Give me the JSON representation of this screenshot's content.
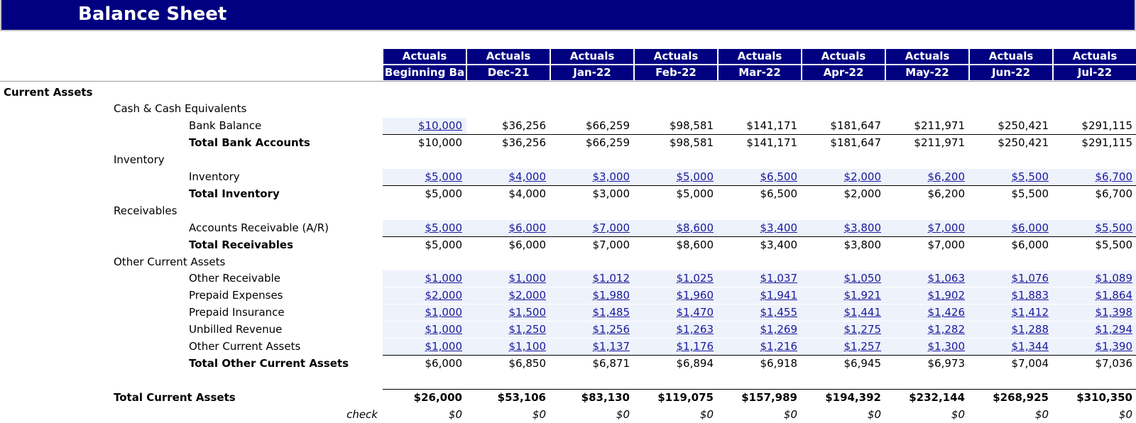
{
  "header": {
    "title": "Balance Sheet"
  },
  "table": {
    "columns": [
      {
        "scenario": "Actuals",
        "period": "Beginning Ba"
      },
      {
        "scenario": "Actuals",
        "period": "Dec-21"
      },
      {
        "scenario": "Actuals",
        "period": "Jan-22"
      },
      {
        "scenario": "Actuals",
        "period": "Feb-22"
      },
      {
        "scenario": "Actuals",
        "period": "Mar-22"
      },
      {
        "scenario": "Actuals",
        "period": "Apr-22"
      },
      {
        "scenario": "Actuals",
        "period": "May-22"
      },
      {
        "scenario": "Actuals",
        "period": "Jun-22"
      },
      {
        "scenario": "Actuals",
        "period": "Jul-22"
      }
    ],
    "rows": [
      {
        "label": "Current Assets"
      },
      {
        "label": "Cash & Cash Equivalents"
      },
      {
        "label": "Bank Balance",
        "cells": [
          "$10,000",
          "$36,256",
          "$66,259",
          "$98,581",
          "$141,171",
          "$181,647",
          "$211,971",
          "$250,421",
          "$291,115"
        ]
      },
      {
        "label": "Total Bank Accounts",
        "cells": [
          "$10,000",
          "$36,256",
          "$66,259",
          "$98,581",
          "$141,171",
          "$181,647",
          "$211,971",
          "$250,421",
          "$291,115"
        ]
      },
      {
        "label": "Inventory"
      },
      {
        "label": "Inventory",
        "cells": [
          "$5,000",
          "$4,000",
          "$3,000",
          "$5,000",
          "$6,500",
          "$2,000",
          "$6,200",
          "$5,500",
          "$6,700"
        ]
      },
      {
        "label": "Total Inventory",
        "cells": [
          "$5,000",
          "$4,000",
          "$3,000",
          "$5,000",
          "$6,500",
          "$2,000",
          "$6,200",
          "$5,500",
          "$6,700"
        ]
      },
      {
        "label": "Receivables"
      },
      {
        "label": "Accounts Receivable (A/R)",
        "cells": [
          "$5,000",
          "$6,000",
          "$7,000",
          "$8,600",
          "$3,400",
          "$3,800",
          "$7,000",
          "$6,000",
          "$5,500"
        ]
      },
      {
        "label": "Total Receivables",
        "cells": [
          "$5,000",
          "$6,000",
          "$7,000",
          "$8,600",
          "$3,400",
          "$3,800",
          "$7,000",
          "$6,000",
          "$5,500"
        ]
      },
      {
        "label": "Other Current Assets"
      },
      {
        "label": "Other Receivable",
        "cells": [
          "$1,000",
          "$1,000",
          "$1,012",
          "$1,025",
          "$1,037",
          "$1,050",
          "$1,063",
          "$1,076",
          "$1,089"
        ]
      },
      {
        "label": "Prepaid Expenses",
        "cells": [
          "$2,000",
          "$2,000",
          "$1,980",
          "$1,960",
          "$1,941",
          "$1,921",
          "$1,902",
          "$1,883",
          "$1,864"
        ]
      },
      {
        "label": "Prepaid Insurance",
        "cells": [
          "$1,000",
          "$1,500",
          "$1,485",
          "$1,470",
          "$1,455",
          "$1,441",
          "$1,426",
          "$1,412",
          "$1,398"
        ]
      },
      {
        "label": "Unbilled Revenue",
        "cells": [
          "$1,000",
          "$1,250",
          "$1,256",
          "$1,263",
          "$1,269",
          "$1,275",
          "$1,282",
          "$1,288",
          "$1,294"
        ]
      },
      {
        "label": "Other Current Assets",
        "cells": [
          "$1,000",
          "$1,100",
          "$1,137",
          "$1,176",
          "$1,216",
          "$1,257",
          "$1,300",
          "$1,344",
          "$1,390"
        ]
      },
      {
        "label": "Total Other Current Assets",
        "cells": [
          "$6,000",
          "$6,850",
          "$6,871",
          "$6,894",
          "$6,918",
          "$6,945",
          "$6,973",
          "$7,004",
          "$7,036"
        ]
      },
      {
        "label": "Total Current Assets",
        "cells": [
          "$26,000",
          "$53,106",
          "$83,130",
          "$119,075",
          "$157,989",
          "$194,392",
          "$232,144",
          "$268,925",
          "$310,350"
        ]
      },
      {
        "label": "check",
        "cells": [
          "$0",
          "$0",
          "$0",
          "$0",
          "$0",
          "$0",
          "$0",
          "$0",
          "$0"
        ]
      }
    ]
  }
}
